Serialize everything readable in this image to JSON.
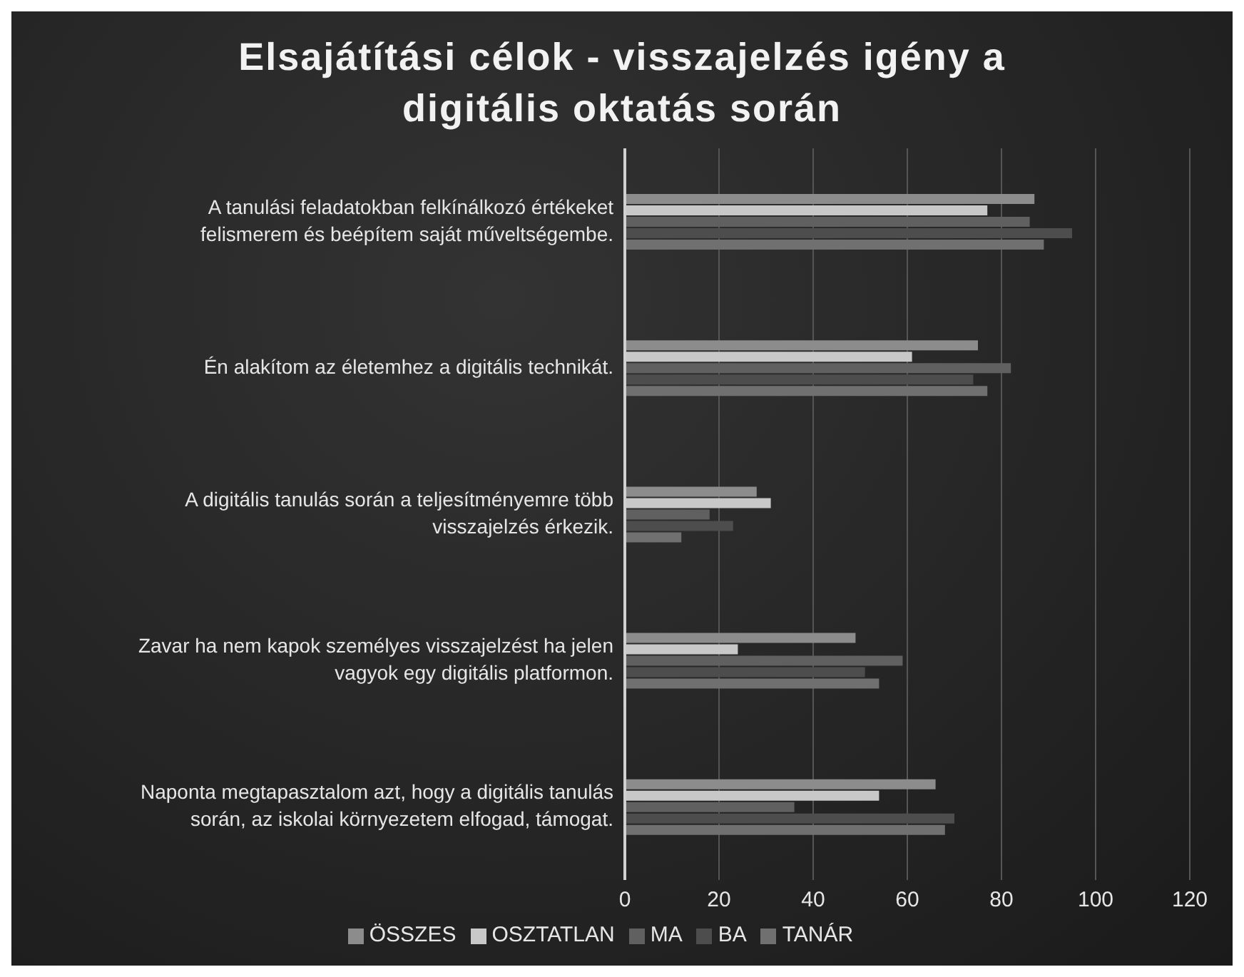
{
  "chart_data": {
    "type": "bar",
    "orientation": "horizontal",
    "title": "Elsajátítási célok - visszajelzés igény a digitális oktatás során",
    "categories": [
      "A tanulási feladatokban felkínálkozó értékeket felismerem és beépítem saját műveltségembe.",
      "Én alakítom az életemhez a digitális technikát.",
      "A digitális tanulás során a teljesítményemre több visszajelzés érkezik.",
      "Zavar ha nem kapok személyes visszajelzést ha jelen vagyok egy digitális platformon.",
      "Naponta megtapasztalom azt, hogy a digitális tanulás során, az iskolai környezetem elfogad, támogat."
    ],
    "series": [
      {
        "name": "ÖSSZES",
        "color": "#8c8c8c",
        "values": [
          87,
          75,
          28,
          49,
          66
        ]
      },
      {
        "name": "OSZTATLAN",
        "color": "#c8c8c8",
        "values": [
          77,
          61,
          31,
          24,
          54
        ]
      },
      {
        "name": "MA",
        "color": "#606060",
        "values": [
          86,
          82,
          18,
          59,
          36
        ]
      },
      {
        "name": "BA",
        "color": "#4d4d4d",
        "values": [
          95,
          74,
          23,
          51,
          70
        ]
      },
      {
        "name": "TANÁR",
        "color": "#707070",
        "values": [
          89,
          77,
          12,
          54,
          68
        ]
      }
    ],
    "xlim": [
      0,
      120
    ],
    "xticks": [
      0,
      20,
      40,
      60,
      80,
      100,
      120
    ],
    "grid": "x",
    "legend": "bottom"
  }
}
